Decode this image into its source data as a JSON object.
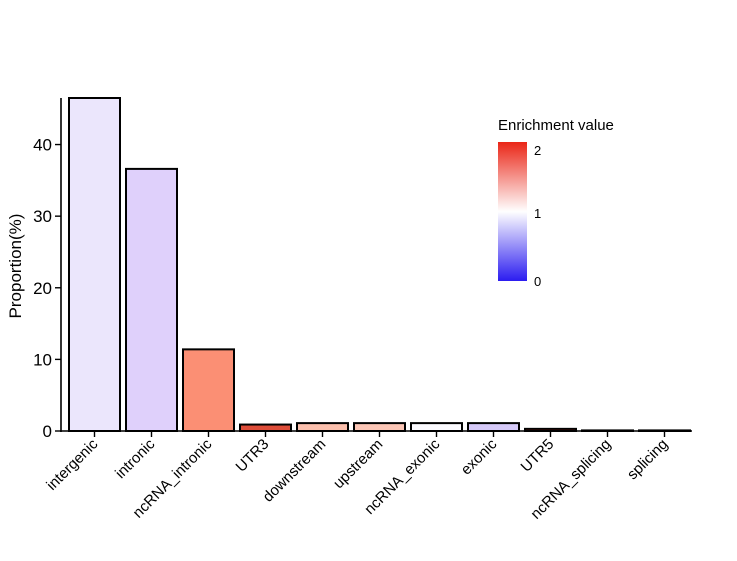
{
  "chart_data": {
    "type": "bar",
    "title": "",
    "xlabel": "",
    "ylabel": "Proportion(%)",
    "ylim": [
      0,
      46.5
    ],
    "yticks": [
      0,
      10,
      20,
      30,
      40
    ],
    "grid": false,
    "categories": [
      "intergenic",
      "intronic",
      "ncRNA_intronic",
      "UTR3",
      "downstream",
      "upstream",
      "ncRNA_exonic",
      "exonic",
      "UTR5",
      "ncRNA_splicing",
      "splicing"
    ],
    "values": [
      46.5,
      36.6,
      11.4,
      0.9,
      1.1,
      1.1,
      1.1,
      1.1,
      0.3,
      0.05,
      0.03
    ],
    "fill_colors": [
      "#ebe6fc",
      "#dfd0fb",
      "#fb8f74",
      "#de4d39",
      "#fcc0ad",
      "#fcc6b6",
      "#fcfbff",
      "#d6caf9",
      "#cc2b1c",
      "#ffffff",
      "#ffffff"
    ],
    "legend": {
      "title": "Enrichment value",
      "position": "top-right",
      "type": "colorbar",
      "ticks": [
        "0",
        "1",
        "2"
      ],
      "colors": {
        "low": "#2b1cf0",
        "mid": "#ffffff",
        "high": "#ea2617"
      }
    }
  }
}
